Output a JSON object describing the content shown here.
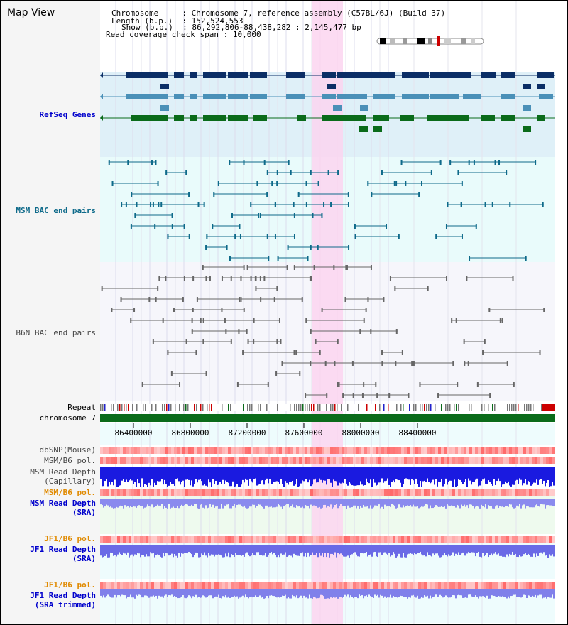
{
  "title": "Map View",
  "header": {
    "chromosome_label": "Chromosome",
    "chromosome_value": "Chromosome 7, reference assembly (C57BL/6J) (Build 37)",
    "length_label": "Length (b.p.)",
    "length_value": "152,524,553",
    "show_label": "Show (b.p.)",
    "show_value": "86,292,806-88,438,282 : 2,145,477 bp",
    "span_label": "Read coverage check span",
    "span_value": "10,000"
  },
  "tracks": {
    "refseq": "RefSeq Genes",
    "msm_bac": "MSM BAC end pairs",
    "b6n_bac": "B6N BAC end pairs",
    "repeat": "Repeat",
    "chromosome": "chromosome 7",
    "dbsnp": "dbSNP(Mouse)",
    "msm_b6_pol_1": "MSM/B6 pol.",
    "msm_read_depth_cap_1": "MSM Read Depth",
    "msm_read_depth_cap_2": "(Capillary)",
    "msm_b6_pol_2": "MSM/B6 pol.",
    "msm_read_depth_sra_1": "MSM Read Depth",
    "msm_read_depth_sra_2": "(SRA)",
    "jf1_b6_pol_1": "JF1/B6 pol.",
    "jf1_read_depth_sra_1": "JF1 Read Depth",
    "jf1_read_depth_sra_2": "(SRA)",
    "jf1_b6_pol_2": "JF1/B6 pol.",
    "jf1_read_depth_trim_1": "JF1 Read Depth",
    "jf1_read_depth_trim_2": "(SRA trimmed)"
  },
  "axis": {
    "ticks": [
      "86400000",
      "86800000",
      "87200000",
      "87600000",
      "88000000",
      "88400000"
    ]
  },
  "colors": {
    "navy": "#0b2e66",
    "steel": "#4a90b8",
    "green": "#0a6b1a",
    "highlight": "#fbd5f0",
    "msm_bac": "#0e6a8a",
    "b6n_bac": "#666666",
    "label_blue": "#0000cc",
    "label_orange": "#e08a00",
    "label_teal": "#0e6a8a"
  }
}
